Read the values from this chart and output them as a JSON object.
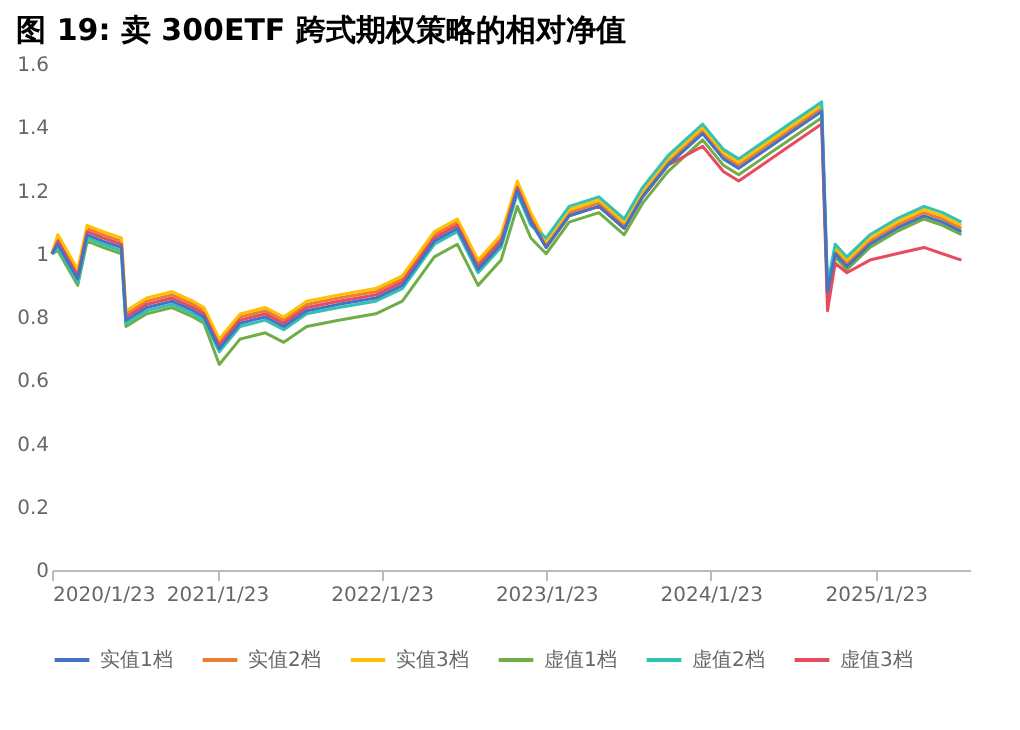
{
  "chart_data": {
    "type": "line",
    "title": "图 19:  卖 300ETF 跨式期权策略的相对净值",
    "x": [
      "2020-01-23",
      "2020-02-05",
      "2020-03-20",
      "2020-04-10",
      "2020-05-15",
      "2020-06-25",
      "2020-07-05",
      "2020-08-20",
      "2020-10-15",
      "2020-12-01",
      "2020-12-25",
      "2021-01-28",
      "2021-03-15",
      "2021-05-10",
      "2021-06-20",
      "2021-08-10",
      "2021-10-20",
      "2022-01-10",
      "2022-03-10",
      "2022-05-20",
      "2022-07-10",
      "2022-08-25",
      "2022-10-15",
      "2022-11-20",
      "2022-12-20",
      "2023-01-23",
      "2023-03-15",
      "2023-05-20",
      "2023-07-15",
      "2023-08-25",
      "2023-10-20",
      "2024-01-05",
      "2024-02-20",
      "2024-03-25",
      "2024-05-15",
      "2024-07-15",
      "2024-09-25",
      "2024-10-08",
      "2024-10-25",
      "2024-11-20",
      "2025-01-10",
      "2025-03-10",
      "2025-05-10",
      "2025-06-20",
      "2025-08-01"
    ],
    "series": [
      {
        "name": "实值1档",
        "color": "#4472c4",
        "values": [
          1.0,
          1.03,
          0.92,
          1.06,
          1.04,
          1.02,
          0.79,
          0.83,
          0.85,
          0.82,
          0.8,
          0.7,
          0.78,
          0.8,
          0.77,
          0.82,
          0.84,
          0.86,
          0.9,
          1.04,
          1.08,
          0.95,
          1.03,
          1.2,
          1.1,
          1.02,
          1.12,
          1.15,
          1.08,
          1.18,
          1.28,
          1.38,
          1.3,
          1.27,
          1.32,
          1.38,
          1.45,
          0.88,
          1.0,
          0.96,
          1.03,
          1.08,
          1.12,
          1.1,
          1.07
        ]
      },
      {
        "name": "实值2档",
        "color": "#ed7d31",
        "values": [
          1.0,
          1.05,
          0.94,
          1.08,
          1.06,
          1.04,
          0.81,
          0.85,
          0.87,
          0.84,
          0.82,
          0.72,
          0.8,
          0.82,
          0.79,
          0.84,
          0.86,
          0.88,
          0.92,
          1.06,
          1.1,
          0.97,
          1.05,
          1.22,
          1.12,
          1.03,
          1.13,
          1.16,
          1.09,
          1.19,
          1.29,
          1.39,
          1.31,
          1.28,
          1.33,
          1.39,
          1.46,
          0.86,
          1.01,
          0.97,
          1.04,
          1.09,
          1.13,
          1.11,
          1.08
        ]
      },
      {
        "name": "实值3档",
        "color": "#ffc000",
        "values": [
          1.0,
          1.06,
          0.95,
          1.09,
          1.07,
          1.05,
          0.82,
          0.86,
          0.88,
          0.85,
          0.83,
          0.73,
          0.81,
          0.83,
          0.8,
          0.85,
          0.87,
          0.89,
          0.93,
          1.07,
          1.11,
          0.98,
          1.06,
          1.23,
          1.13,
          1.04,
          1.14,
          1.17,
          1.1,
          1.2,
          1.3,
          1.4,
          1.32,
          1.29,
          1.34,
          1.4,
          1.47,
          0.87,
          1.02,
          0.98,
          1.05,
          1.1,
          1.14,
          1.12,
          1.09
        ]
      },
      {
        "name": "虚值1档",
        "color": "#70ad47",
        "values": [
          1.0,
          1.01,
          0.9,
          1.04,
          1.02,
          1.0,
          0.77,
          0.81,
          0.83,
          0.8,
          0.78,
          0.65,
          0.73,
          0.75,
          0.72,
          0.77,
          0.79,
          0.81,
          0.85,
          0.99,
          1.03,
          0.9,
          0.98,
          1.15,
          1.05,
          1.0,
          1.1,
          1.13,
          1.06,
          1.16,
          1.26,
          1.36,
          1.28,
          1.25,
          1.3,
          1.36,
          1.43,
          0.87,
          0.99,
          0.95,
          1.02,
          1.07,
          1.11,
          1.09,
          1.06
        ]
      },
      {
        "name": "虚值2档",
        "color": "#33c1b3",
        "values": [
          1.0,
          1.02,
          0.91,
          1.05,
          1.03,
          1.01,
          0.78,
          0.82,
          0.84,
          0.81,
          0.79,
          0.69,
          0.77,
          0.79,
          0.76,
          0.81,
          0.83,
          0.85,
          0.89,
          1.03,
          1.07,
          0.94,
          1.02,
          1.19,
          1.09,
          1.05,
          1.15,
          1.18,
          1.11,
          1.21,
          1.31,
          1.41,
          1.33,
          1.3,
          1.35,
          1.41,
          1.48,
          0.9,
          1.03,
          0.99,
          1.06,
          1.11,
          1.15,
          1.13,
          1.1
        ]
      },
      {
        "name": "虚值3档",
        "color": "#e84a5f",
        "values": [
          1.0,
          1.04,
          0.93,
          1.07,
          1.05,
          1.03,
          0.8,
          0.84,
          0.86,
          0.83,
          0.81,
          0.71,
          0.79,
          0.81,
          0.78,
          0.83,
          0.85,
          0.87,
          0.91,
          1.05,
          1.09,
          0.96,
          1.04,
          1.21,
          1.11,
          1.02,
          1.12,
          1.15,
          1.08,
          1.18,
          1.28,
          1.34,
          1.26,
          1.23,
          1.28,
          1.34,
          1.41,
          0.82,
          0.97,
          0.94,
          0.98,
          1.0,
          1.02,
          1.0,
          0.98
        ]
      }
    ],
    "xlim": [
      "2020-01-23",
      "2025-08-20"
    ],
    "xticks": [
      {
        "value": "2020-01-23",
        "label": "2020/1/23"
      },
      {
        "value": "2021-01-23",
        "label": "2021/1/23"
      },
      {
        "value": "2022-01-23",
        "label": "2022/1/23"
      },
      {
        "value": "2023-01-23",
        "label": "2023/1/23"
      },
      {
        "value": "2024-01-23",
        "label": "2024/1/23"
      },
      {
        "value": "2025-01-23",
        "label": "2025/1/23"
      }
    ],
    "ylim": [
      0,
      1.6
    ],
    "yticks": [
      0,
      0.2,
      0.4,
      0.6,
      0.8,
      1,
      1.2,
      1.4,
      1.6
    ],
    "grid": false,
    "legend": "bottom",
    "marker": "none",
    "line_style": "solid"
  }
}
